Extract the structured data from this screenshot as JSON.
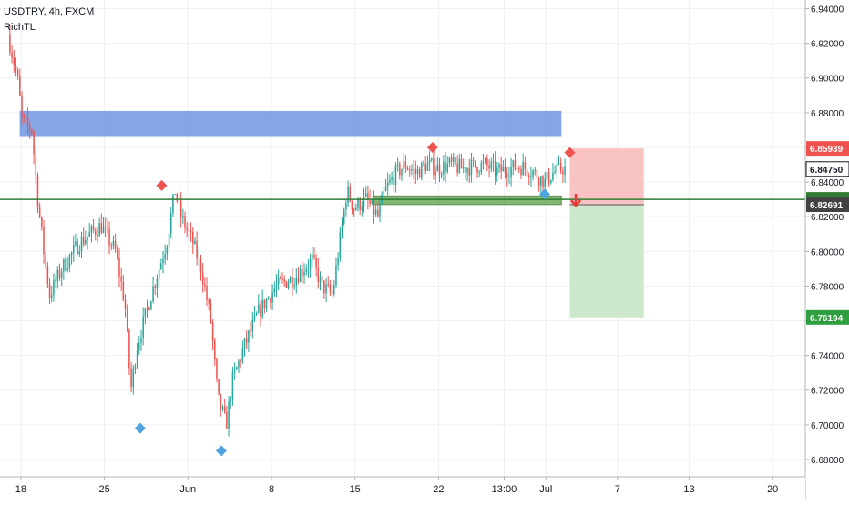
{
  "header": {
    "symbol_line": "USDTRY, 4h, FXCM",
    "indicator": "RichTL"
  },
  "colors": {
    "up": "#26a69a",
    "down": "#ef5350",
    "resistance_zone": "#6f96e0",
    "support_line": "#2e7d32",
    "support_zone": "#6aab5a",
    "stop_zone": "#f8b8b8",
    "target_zone": "#c8e6c4",
    "marker_red": "#ef5350",
    "marker_blue": "#4fa3e0",
    "grid": "#edeff3",
    "axis_text": "#131722"
  },
  "chart_data": {
    "type": "candlestick",
    "symbol": "USDTRY",
    "timeframe": "4h",
    "source": "FXCM",
    "xlim": [
      "May 17",
      "Jul 21"
    ],
    "x_ticks": [
      "18",
      "25",
      "Jun",
      "8",
      "15",
      "22",
      "13:00",
      "Jul",
      "7",
      "13",
      "20"
    ],
    "ylim": [
      6.67,
      6.945
    ],
    "y_ticks": [
      "6.94000",
      "6.92000",
      "6.90000",
      "6.88000",
      "6.86000",
      "6.84000",
      "6.82000",
      "6.80000",
      "6.78000",
      "6.76000",
      "6.74000",
      "6.72000",
      "6.70000",
      "6.68000"
    ],
    "price_labels": [
      {
        "text": "6.85939",
        "value": 6.85939,
        "style": "stop"
      },
      {
        "text": "6.84750",
        "value": 6.8475,
        "style": "last"
      },
      {
        "text": "6.83000",
        "value": 6.83,
        "style": "level"
      },
      {
        "text": "6.82691",
        "value": 6.82691,
        "style": "entry"
      },
      {
        "text": "6.76194",
        "value": 6.76194,
        "style": "target"
      }
    ],
    "anchors": [
      {
        "d": 0.0,
        "p": 6.925
      },
      {
        "d": 0.8,
        "p": 6.9
      },
      {
        "d": 1.2,
        "p": 6.875
      },
      {
        "d": 2.0,
        "p": 6.87
      },
      {
        "d": 2.5,
        "p": 6.83
      },
      {
        "d": 3.0,
        "p": 6.8
      },
      {
        "d": 3.5,
        "p": 6.775
      },
      {
        "d": 4.5,
        "p": 6.79
      },
      {
        "d": 6.0,
        "p": 6.805
      },
      {
        "d": 7.8,
        "p": 6.815
      },
      {
        "d": 9.0,
        "p": 6.8
      },
      {
        "d": 9.8,
        "p": 6.77
      },
      {
        "d": 10.3,
        "p": 6.72
      },
      {
        "d": 10.8,
        "p": 6.745
      },
      {
        "d": 12.0,
        "p": 6.775
      },
      {
        "d": 13.3,
        "p": 6.805
      },
      {
        "d": 14.0,
        "p": 6.835
      },
      {
        "d": 14.5,
        "p": 6.82
      },
      {
        "d": 15.5,
        "p": 6.805
      },
      {
        "d": 16.2,
        "p": 6.79
      },
      {
        "d": 17.0,
        "p": 6.76
      },
      {
        "d": 17.6,
        "p": 6.715
      },
      {
        "d": 18.3,
        "p": 6.7
      },
      {
        "d": 18.8,
        "p": 6.725
      },
      {
        "d": 19.8,
        "p": 6.745
      },
      {
        "d": 21.0,
        "p": 6.765
      },
      {
        "d": 22.5,
        "p": 6.78
      },
      {
        "d": 24.0,
        "p": 6.785
      },
      {
        "d": 25.5,
        "p": 6.795
      },
      {
        "d": 26.3,
        "p": 6.78
      },
      {
        "d": 27.2,
        "p": 6.775
      },
      {
        "d": 27.7,
        "p": 6.8
      },
      {
        "d": 28.4,
        "p": 6.835
      },
      {
        "d": 29.0,
        "p": 6.825
      },
      {
        "d": 30.0,
        "p": 6.83
      },
      {
        "d": 31.0,
        "p": 6.82
      },
      {
        "d": 31.6,
        "p": 6.835
      },
      {
        "d": 32.5,
        "p": 6.845
      },
      {
        "d": 33.3,
        "p": 6.85
      },
      {
        "d": 34.2,
        "p": 6.845
      },
      {
        "d": 35.0,
        "p": 6.85
      },
      {
        "d": 36.0,
        "p": 6.848
      },
      {
        "d": 37.0,
        "p": 6.85
      },
      {
        "d": 38.0,
        "p": 6.848
      },
      {
        "d": 39.0,
        "p": 6.849
      },
      {
        "d": 40.0,
        "p": 6.85
      },
      {
        "d": 41.0,
        "p": 6.846
      },
      {
        "d": 42.0,
        "p": 6.848
      },
      {
        "d": 43.0,
        "p": 6.849
      },
      {
        "d": 44.0,
        "p": 6.846
      },
      {
        "d": 45.0,
        "p": 6.84
      },
      {
        "d": 45.6,
        "p": 6.845
      },
      {
        "d": 46.5,
        "p": 6.848
      }
    ],
    "resistance_zone": {
      "from": 0.9,
      "to": 46.3,
      "low": 6.866,
      "high": 6.881
    },
    "support_line": {
      "value": 6.83
    },
    "support_zone": {
      "from": 30.5,
      "to": 46.3,
      "low": 6.827,
      "high": 6.832
    },
    "trade": {
      "from": 47.0,
      "to": 53.2,
      "entry": 6.82691,
      "stop": 6.85939,
      "target": 6.76194
    },
    "markers": [
      {
        "d": 11.0,
        "p": 6.698,
        "color": "blue"
      },
      {
        "d": 12.8,
        "p": 6.838,
        "color": "red"
      },
      {
        "d": 17.8,
        "p": 6.685,
        "color": "blue"
      },
      {
        "d": 35.5,
        "p": 6.86,
        "color": "red"
      },
      {
        "d": 44.9,
        "p": 6.833,
        "color": "blue"
      },
      {
        "d": 47.0,
        "p": 6.857,
        "color": "red"
      }
    ],
    "signal_arrow": {
      "d": 47.5,
      "p": 6.829
    }
  }
}
